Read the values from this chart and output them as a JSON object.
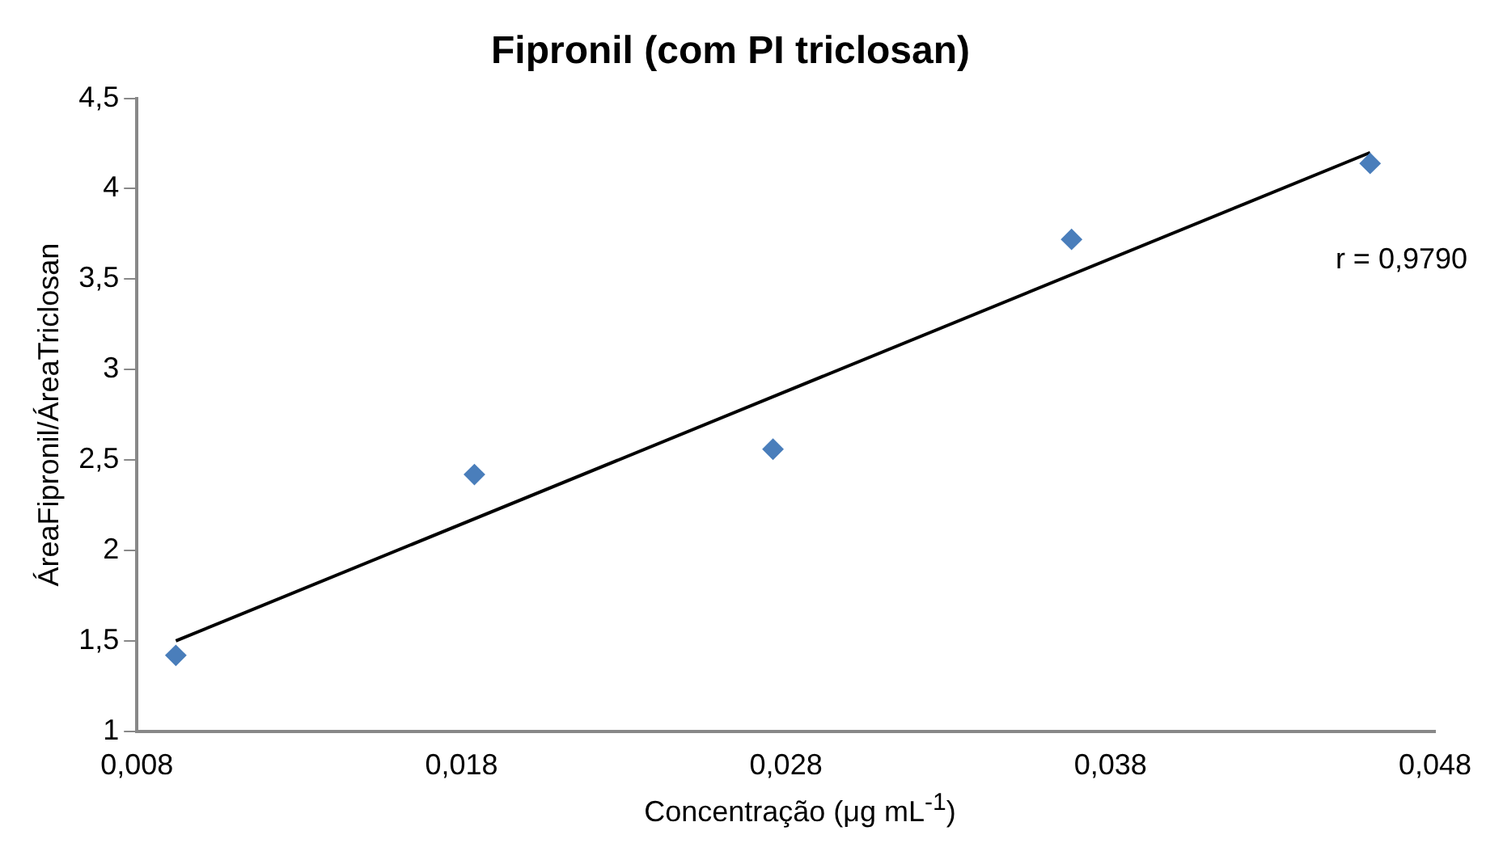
{
  "chart_data": {
    "type": "scatter",
    "title": "Fipronil (com PI triclosan)",
    "xlabel": "Concentração (μg mL$^{-1}$)",
    "ylabel": "ÁreaFipronil/ÁreaTriclosan",
    "x": [
      0.0092,
      0.0184,
      0.0276,
      0.0368,
      0.046
    ],
    "series": [
      {
        "color": "#4a7ebb",
        "values": [
          1.42,
          2.42,
          2.56,
          3.72,
          4.14
        ],
        "marker": "diamond"
      },
      {
        "type": "line",
        "color": "#000000",
        "x": [
          0.0092,
          0.046
        ],
        "values": [
          1.5,
          4.2
        ],
        "marker": "none",
        "line_style": "solid"
      }
    ],
    "xlim": [
      0.008,
      0.048
    ],
    "xticks": [
      {
        "value": 0.008,
        "label": "0,008"
      },
      {
        "value": 0.018,
        "label": "0,018"
      },
      {
        "value": 0.028,
        "label": "0,028"
      },
      {
        "value": 0.038,
        "label": "0,038"
      },
      {
        "value": 0.048,
        "label": "0,048"
      }
    ],
    "ylim": [
      1,
      4.5
    ],
    "yticks": [
      1,
      {
        "value": 1.5,
        "label": "1,5"
      },
      2,
      {
        "value": 2.5,
        "label": "2,5"
      },
      3,
      {
        "value": 3.5,
        "label": "3,5"
      },
      4,
      {
        "value": 4.5,
        "label": "4,5"
      }
    ],
    "annotations": [
      "r = 0,9790"
    ],
    "grid": false,
    "legend": false
  }
}
